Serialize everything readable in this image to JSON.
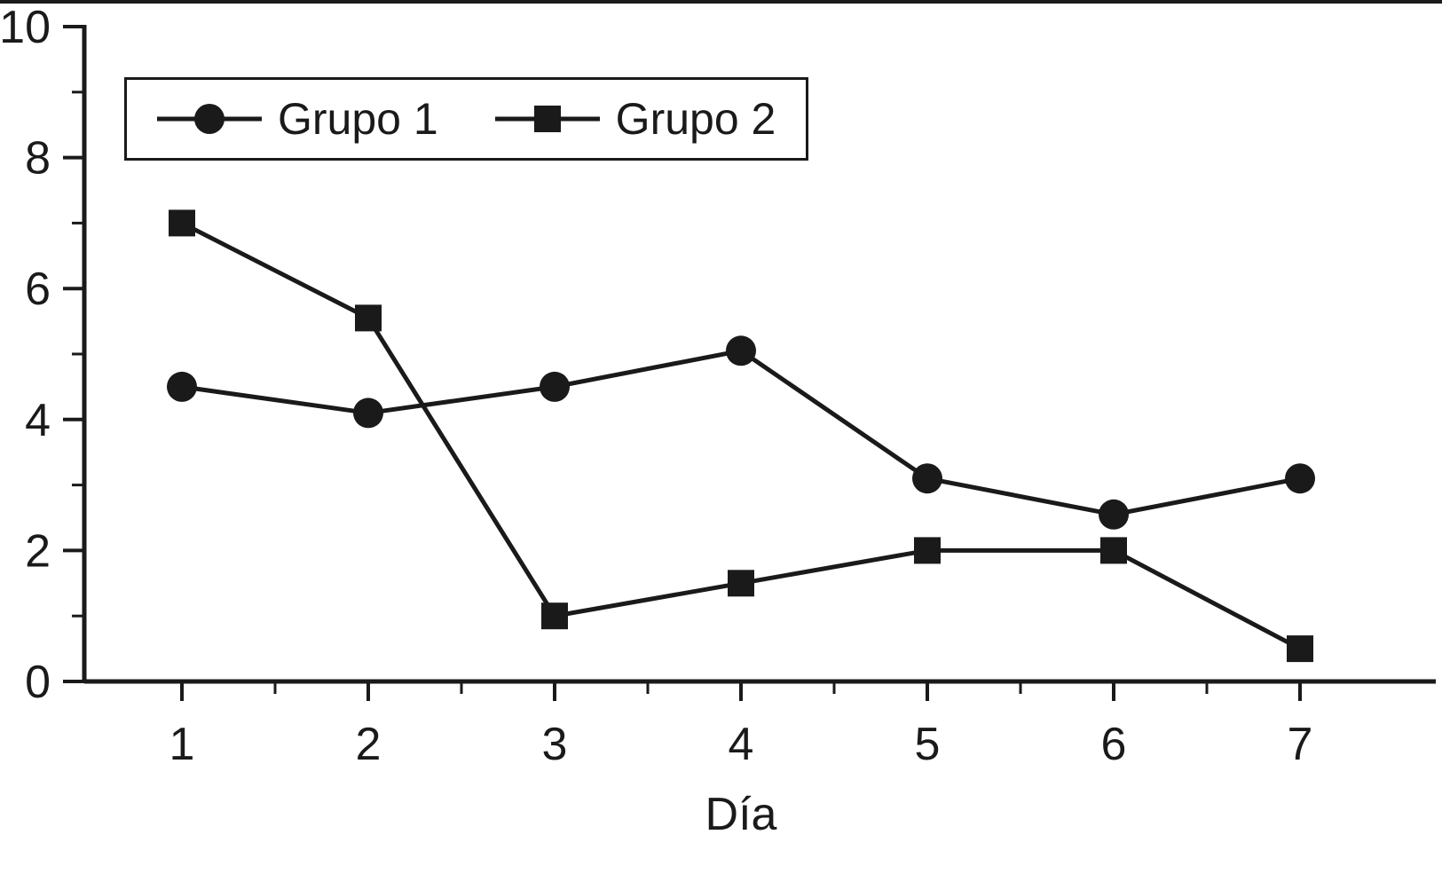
{
  "chart_data": {
    "type": "line",
    "title": "",
    "xlabel": "Día",
    "ylabel": "",
    "x": [
      1,
      2,
      3,
      4,
      5,
      6,
      7
    ],
    "xlim": [
      0.5,
      7.75
    ],
    "ylim": [
      0,
      10
    ],
    "y_ticks": [
      0,
      2,
      4,
      6,
      8,
      10
    ],
    "y_minor_ticks": [
      1,
      3,
      5,
      7,
      9
    ],
    "x_minor_ticks": [
      1.5,
      2.5,
      3.5,
      4.5,
      5.5,
      6.5
    ],
    "grid": false,
    "legend_position": "top-left",
    "series": [
      {
        "name": "Grupo 1",
        "marker": "circle",
        "values": [
          4.5,
          4.1,
          4.5,
          5.05,
          3.1,
          2.55,
          3.1
        ]
      },
      {
        "name": "Grupo 2",
        "marker": "square",
        "values": [
          7.0,
          5.55,
          1.0,
          1.5,
          2.0,
          2.0,
          0.5
        ]
      }
    ],
    "colors": {
      "ink": "#1a1a1a",
      "background": "#ffffff"
    }
  }
}
